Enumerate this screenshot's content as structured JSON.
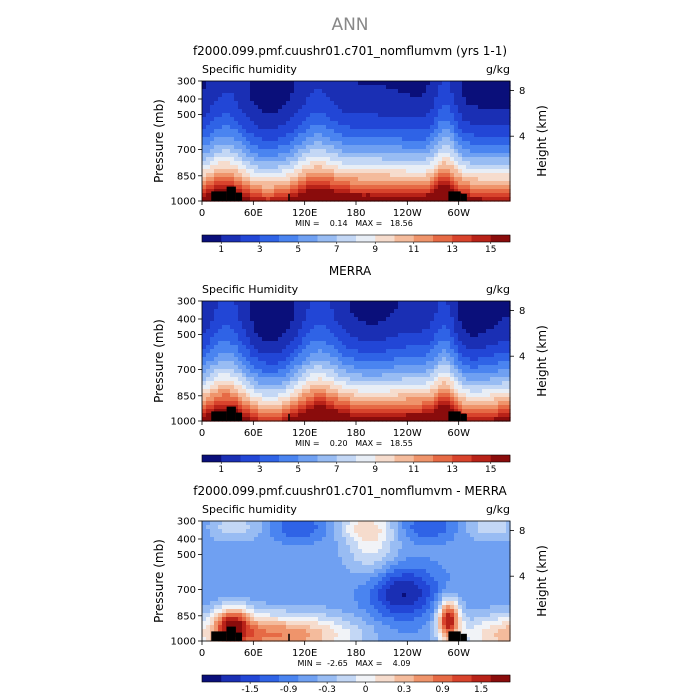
{
  "page_title": "ANN",
  "common": {
    "y_axis_label": "Pressure (mb)",
    "right_axis_label": "Height (km)",
    "units": "g/kg",
    "y_ticks": [
      "300",
      "400",
      "500",
      "700",
      "850",
      "1000"
    ],
    "x_ticks": [
      "0",
      "60E",
      "120E",
      "180",
      "120W",
      "60W"
    ],
    "height_ticks": [
      "8",
      "4"
    ]
  },
  "panels": [
    {
      "title": "f2000.099.pmf.cuushr01.c701_nomflumvm (yrs 1-1)",
      "variable": "Specific humidity",
      "stats": "MIN =    0.14   MAX =   18.56",
      "colorbar_labels": [
        "1",
        "3",
        "5",
        "7",
        "9",
        "11",
        "13",
        "15"
      ]
    },
    {
      "title": "MERRA",
      "variable": "Specific Humidity",
      "stats": "MIN =    0.20   MAX =   18.55",
      "colorbar_labels": [
        "1",
        "3",
        "5",
        "7",
        "9",
        "11",
        "13",
        "15"
      ]
    },
    {
      "title": "f2000.099.pmf.cuushr01.c701_nomflumvm - MERRA",
      "variable": "Specific humidity",
      "stats": "MIN =  -2.65   MAX =    4.09",
      "colorbar_labels": [
        "-1.5",
        "-0.9",
        "-0.3",
        "0",
        "0.3",
        "0.9",
        "1.5"
      ]
    }
  ],
  "chart_data": [
    {
      "type": "heatmap",
      "title": "f2000.099.pmf.cuushr01.c701_nomflumvm (yrs 1-1)",
      "xlabel": "",
      "ylabel": "Pressure (mb)",
      "y2label": "Height (km)",
      "x_range": [
        0,
        360
      ],
      "y_range_mb": [
        1000,
        300
      ],
      "levels": [
        1,
        2,
        3,
        4,
        5,
        6,
        7,
        8,
        9,
        10,
        11,
        12,
        13,
        14,
        15,
        16
      ],
      "min": 0.14,
      "max": 18.56,
      "colormap": [
        "#0a0f7a",
        "#1a2fb4",
        "#2246d6",
        "#2f63e6",
        "#4a84f0",
        "#6fa0f2",
        "#98bcf3",
        "#c3d7f5",
        "#e8eef6",
        "#f6dccd",
        "#f4bb9c",
        "#ef946b",
        "#e66a45",
        "#d8432c",
        "#b82218",
        "#8a0c0c"
      ]
    },
    {
      "type": "heatmap",
      "title": "MERRA",
      "xlabel": "",
      "ylabel": "Pressure (mb)",
      "y2label": "Height (km)",
      "x_range": [
        0,
        360
      ],
      "y_range_mb": [
        1000,
        300
      ],
      "levels": [
        1,
        2,
        3,
        4,
        5,
        6,
        7,
        8,
        9,
        10,
        11,
        12,
        13,
        14,
        15,
        16
      ],
      "min": 0.2,
      "max": 18.55,
      "colormap": [
        "#0a0f7a",
        "#1a2fb4",
        "#2246d6",
        "#2f63e6",
        "#4a84f0",
        "#6fa0f2",
        "#98bcf3",
        "#c3d7f5",
        "#e8eef6",
        "#f6dccd",
        "#f4bb9c",
        "#ef946b",
        "#e66a45",
        "#d8432c",
        "#b82218",
        "#8a0c0c"
      ]
    },
    {
      "type": "heatmap",
      "title": "f2000.099.pmf.cuushr01.c701_nomflumvm - MERRA",
      "xlabel": "",
      "ylabel": "Pressure (mb)",
      "y2label": "Height (km)",
      "x_range": [
        0,
        360
      ],
      "y_range_mb": [
        1000,
        300
      ],
      "levels": [
        -1.8,
        -1.5,
        -1.2,
        -0.9,
        -0.6,
        -0.3,
        -0.1,
        0,
        0.1,
        0.3,
        0.6,
        0.9,
        1.2,
        1.5,
        1.8
      ],
      "min": -2.65,
      "max": 4.09,
      "colormap": [
        "#0a0f7a",
        "#1a2fb4",
        "#2246d6",
        "#2f63e6",
        "#4a84f0",
        "#6fa0f2",
        "#98bcf3",
        "#c3d7f5",
        "#f1f3f7",
        "#f6dccd",
        "#f4bb9c",
        "#ef946b",
        "#e66a45",
        "#d8432c",
        "#b82218",
        "#8a0c0c"
      ]
    }
  ]
}
